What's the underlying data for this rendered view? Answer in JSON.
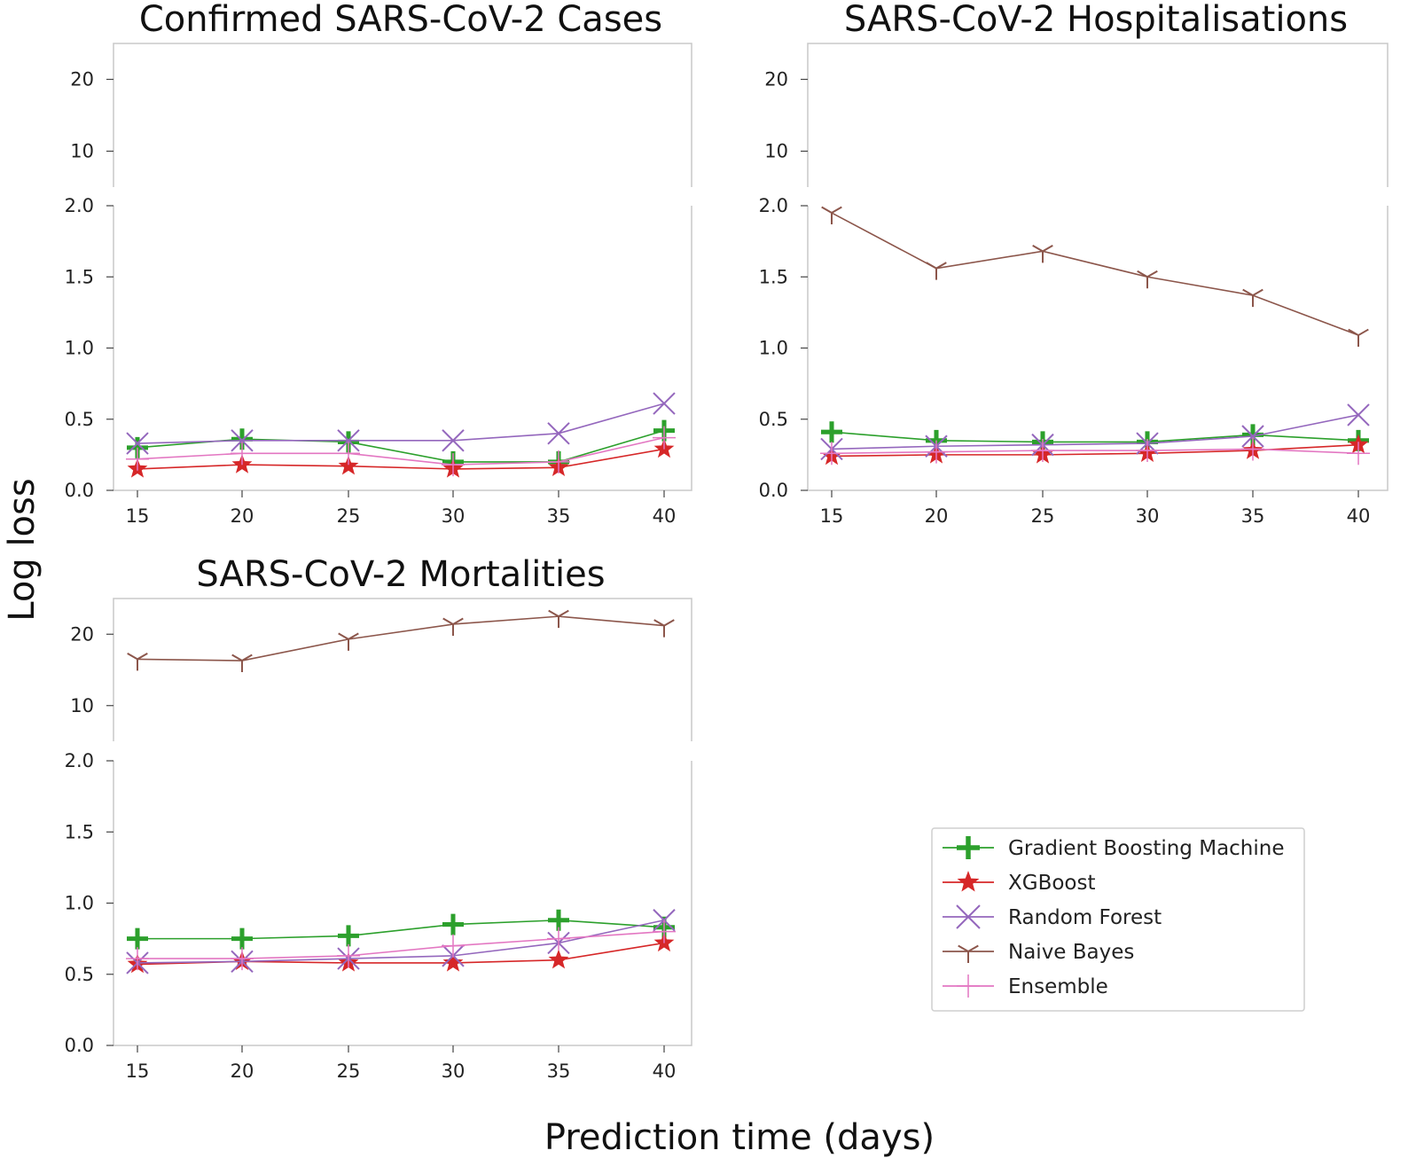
{
  "figure": {
    "xlabel": "Prediction time (days)",
    "ylabel": "Log loss"
  },
  "chart_data": [
    {
      "type": "line",
      "title": "Confirmed SARS-CoV-2 Cases",
      "xlabel": "Prediction time (days)",
      "ylabel": "Log loss",
      "x": [
        15,
        20,
        25,
        30,
        35,
        40
      ],
      "x_ticks": [
        "15",
        "20",
        "25",
        "30",
        "35",
        "40"
      ],
      "y_upper_ticks": [
        "10",
        "20"
      ],
      "y_lower_ticks": [
        "0.0",
        "0.5",
        "1.0",
        "1.5",
        "2.0"
      ],
      "ylim_lower": [
        0,
        2
      ],
      "ylim_upper": [
        5,
        25
      ],
      "series": [
        {
          "name": "Gradient Boosting Machine",
          "values": [
            0.3,
            0.36,
            0.34,
            0.2,
            0.2,
            0.42
          ]
        },
        {
          "name": "XGBoost",
          "values": [
            0.15,
            0.18,
            0.17,
            0.15,
            0.16,
            0.29
          ]
        },
        {
          "name": "Random Forest",
          "values": [
            0.33,
            0.35,
            0.35,
            0.35,
            0.4,
            0.61
          ]
        },
        {
          "name": "Naive Bayes",
          "values": [
            null,
            null,
            null,
            null,
            null,
            null
          ]
        },
        {
          "name": "Ensemble",
          "values": [
            0.22,
            0.26,
            0.26,
            0.18,
            0.2,
            0.37
          ]
        }
      ]
    },
    {
      "type": "line",
      "title": "SARS-CoV-2 Hospitalisations",
      "xlabel": "Prediction time (days)",
      "ylabel": "Log loss",
      "x": [
        15,
        20,
        25,
        30,
        35,
        40
      ],
      "x_ticks": [
        "15",
        "20",
        "25",
        "30",
        "35",
        "40"
      ],
      "y_upper_ticks": [
        "10",
        "20"
      ],
      "y_lower_ticks": [
        "0.0",
        "0.5",
        "1.0",
        "1.5",
        "2.0"
      ],
      "ylim_lower": [
        0,
        2
      ],
      "ylim_upper": [
        5,
        25
      ],
      "series": [
        {
          "name": "Gradient Boosting Machine",
          "values": [
            0.41,
            0.35,
            0.34,
            0.34,
            0.39,
            0.35
          ]
        },
        {
          "name": "XGBoost",
          "values": [
            0.24,
            0.25,
            0.25,
            0.26,
            0.28,
            0.32
          ]
        },
        {
          "name": "Random Forest",
          "values": [
            0.29,
            0.31,
            0.32,
            0.33,
            0.38,
            0.53
          ]
        },
        {
          "name": "Naive Bayes",
          "values": [
            1.95,
            1.56,
            1.68,
            1.5,
            1.37,
            1.09
          ]
        },
        {
          "name": "Ensemble",
          "values": [
            0.26,
            0.27,
            0.28,
            0.28,
            0.29,
            0.26
          ]
        }
      ]
    },
    {
      "type": "line",
      "title": "SARS-CoV-2 Mortalities",
      "xlabel": "Prediction time (days)",
      "ylabel": "Log loss",
      "x": [
        15,
        20,
        25,
        30,
        35,
        40
      ],
      "x_ticks": [
        "15",
        "20",
        "25",
        "30",
        "35",
        "40"
      ],
      "y_upper_ticks": [
        "10",
        "20"
      ],
      "y_lower_ticks": [
        "0.0",
        "0.5",
        "1.0",
        "1.5",
        "2.0"
      ],
      "ylim_lower": [
        0,
        2
      ],
      "ylim_upper": [
        5,
        25
      ],
      "series": [
        {
          "name": "Gradient Boosting Machine",
          "values": [
            0.75,
            0.75,
            0.77,
            0.85,
            0.88,
            0.83
          ]
        },
        {
          "name": "XGBoost",
          "values": [
            0.57,
            0.59,
            0.58,
            0.58,
            0.6,
            0.72
          ]
        },
        {
          "name": "Random Forest",
          "values": [
            0.58,
            0.59,
            0.61,
            0.63,
            0.72,
            0.88
          ]
        },
        {
          "name": "Naive Bayes",
          "values": [
            16.5,
            16.3,
            19.3,
            21.4,
            22.5,
            21.2
          ]
        },
        {
          "name": "Ensemble",
          "values": [
            0.61,
            0.61,
            0.63,
            0.7,
            0.75,
            0.8
          ]
        }
      ]
    }
  ],
  "legend": {
    "position": "lower-right",
    "entries": [
      {
        "name": "Gradient Boosting Machine",
        "color": "#2ca02c",
        "marker": "plus-thick"
      },
      {
        "name": "XGBoost",
        "color": "#d62728",
        "marker": "star"
      },
      {
        "name": "Random Forest",
        "color": "#9467bd",
        "marker": "x"
      },
      {
        "name": "Naive Bayes",
        "color": "#8c564b",
        "marker": "tri-down"
      },
      {
        "name": "Ensemble",
        "color": "#e377c2",
        "marker": "thin-plus"
      }
    ]
  }
}
